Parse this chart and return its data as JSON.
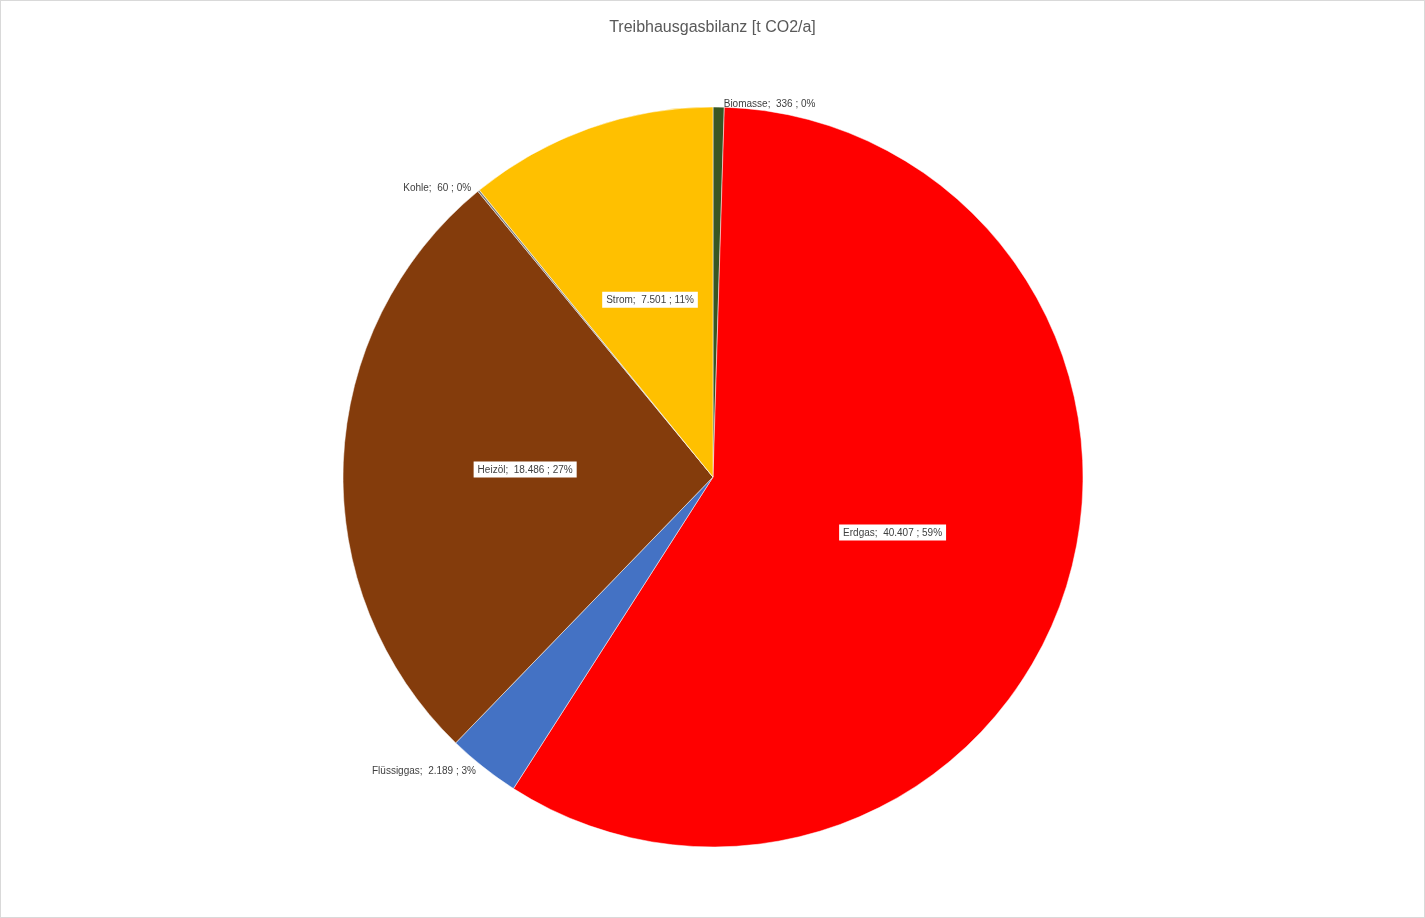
{
  "chart_data": {
    "type": "pie",
    "title": "Treibhausgasbilanz [t CO2/a]",
    "categories": [
      "Biomasse",
      "Erdgas",
      "Flüssiggas",
      "Heizöl",
      "Kohle",
      "Strom"
    ],
    "values": [
      336,
      40407,
      2189,
      18486,
      60,
      7501
    ],
    "value_labels": [
      "336 ; 0%",
      "40.407 ; 59%",
      "2.189 ; 3%",
      "18.486 ; 27%",
      "60 ; 0%",
      "7.501 ; 11%"
    ],
    "colors": [
      "#375623",
      "#ff0000",
      "#4472c4",
      "#843c0c",
      "#7f7f7f",
      "#ffc000"
    ],
    "legend": false
  }
}
